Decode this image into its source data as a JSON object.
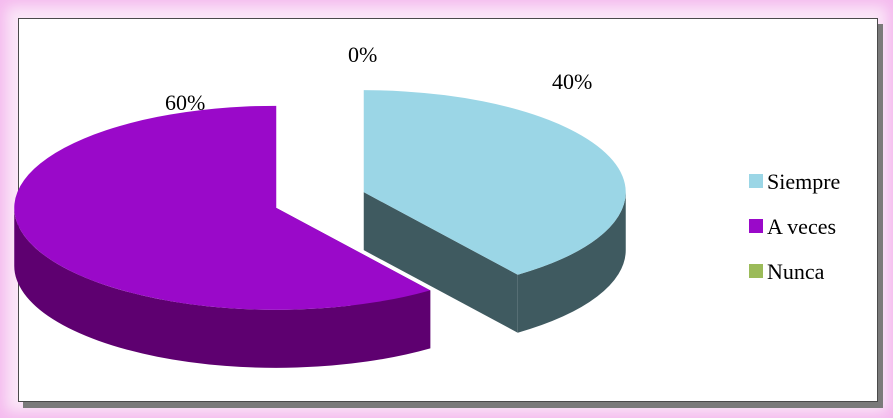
{
  "chart_data": {
    "type": "pie",
    "style": "3d-exploded",
    "categories": [
      "Siempre",
      "A veces",
      "Nunca"
    ],
    "values": [
      40,
      60,
      0
    ],
    "data_labels": [
      "40%",
      "60%",
      "0%"
    ],
    "colors": {
      "Siempre": {
        "top": "#9bd6e6",
        "side": "#3f5a60"
      },
      "A veces": {
        "top": "#9a09c9",
        "side": "#5e0070"
      },
      "Nunca": {
        "top": "#9bbb59",
        "side": "#6f8a3a"
      }
    },
    "legend": {
      "placement": "right",
      "items": [
        "Siempre",
        "A veces",
        "Nunca"
      ]
    }
  }
}
